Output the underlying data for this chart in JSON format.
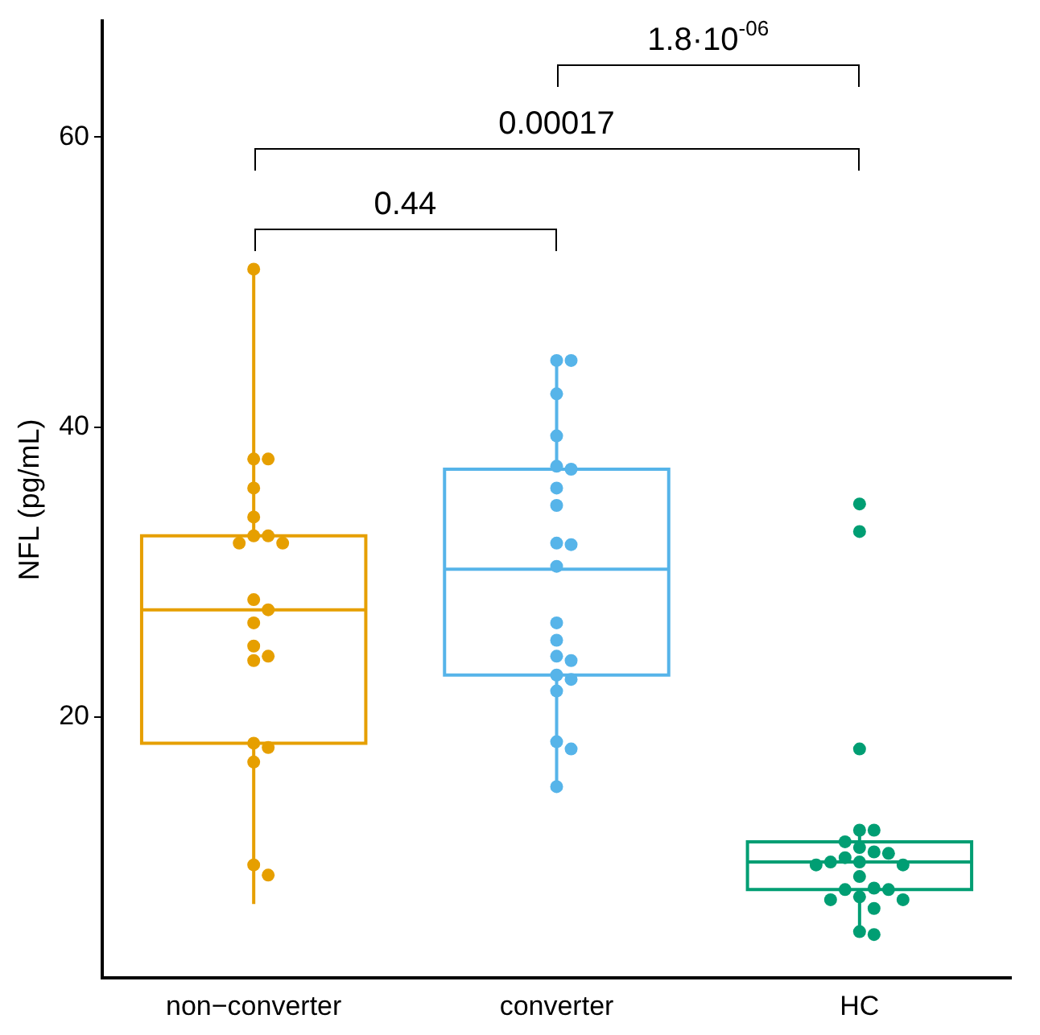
{
  "chart_data": {
    "type": "box",
    "ylabel": "NFL (pg/mL)",
    "categories": [
      "non−converter",
      "converter",
      "HC"
    ],
    "colors": [
      "#e69f00",
      "#56b4e9",
      "#009e73"
    ],
    "boxes": [
      {
        "low": 7.1,
        "q1": 18.2,
        "median": 27.4,
        "q3": 32.5,
        "high": 50.9
      },
      {
        "low": 15.3,
        "q1": 22.9,
        "median": 30.2,
        "q3": 37.1,
        "high": 44.5
      },
      {
        "low": 5.1,
        "q1": 8.1,
        "median": 10.0,
        "q3": 11.4,
        "high": 12.2
      }
    ],
    "series": [
      {
        "type": "scatter",
        "color": "#e69f00",
        "x": [
          "non−converter",
          "non−converter",
          "non−converter",
          "non−converter",
          "non−converter",
          "non−converter",
          "non−converter",
          "non−converter",
          "non−converter",
          "non−converter",
          "non−converter",
          "non−converter",
          "non−converter",
          "non−converter",
          "non−converter",
          "non−converter",
          "non−converter",
          "non−converter",
          "non−converter",
          "non−converter"
        ],
        "values": [
          50.9,
          37.8,
          37.8,
          35.8,
          33.8,
          32.5,
          32.5,
          32.0,
          32.0,
          28.1,
          27.4,
          26.5,
          24.9,
          24.2,
          23.9,
          18.2,
          17.9,
          16.9,
          9.8,
          9.1
        ]
      },
      {
        "type": "scatter",
        "color": "#56b4e9",
        "x": [
          "converter",
          "converter",
          "converter",
          "converter",
          "converter",
          "converter",
          "converter",
          "converter",
          "converter",
          "converter",
          "converter",
          "converter",
          "converter",
          "converter",
          "converter",
          "converter",
          "converter",
          "converter",
          "converter",
          "converter",
          "converter"
        ],
        "values": [
          44.6,
          44.6,
          42.3,
          39.4,
          37.3,
          37.1,
          35.8,
          34.6,
          32.0,
          31.9,
          30.4,
          26.5,
          25.3,
          24.2,
          23.9,
          22.9,
          22.6,
          21.8,
          18.3,
          17.8,
          15.2
        ]
      },
      {
        "type": "scatter",
        "color": "#009e73",
        "x": [
          "HC",
          "HC",
          "HC",
          "HC",
          "HC",
          "HC",
          "HC",
          "HC",
          "HC",
          "HC",
          "HC",
          "HC",
          "HC",
          "HC",
          "HC",
          "HC",
          "HC",
          "HC",
          "HC",
          "HC",
          "HC",
          "HC",
          "HC",
          "HC"
        ],
        "values": [
          34.7,
          32.8,
          17.8,
          12.2,
          12.2,
          11.4,
          11.0,
          10.7,
          10.6,
          10.3,
          10.0,
          10.0,
          9.8,
          9.8,
          9.0,
          8.2,
          8.1,
          8.1,
          7.6,
          7.4,
          7.4,
          6.8,
          5.2,
          5.0
        ]
      }
    ],
    "annotations": [
      "0.44",
      "0.00017",
      "1.8·10$^{-06}$"
    ],
    "ylim": [
      2,
      68
    ],
    "yticks": [
      20,
      40,
      60
    ],
    "grid": false,
    "legend": false,
    "marker": "circle"
  }
}
